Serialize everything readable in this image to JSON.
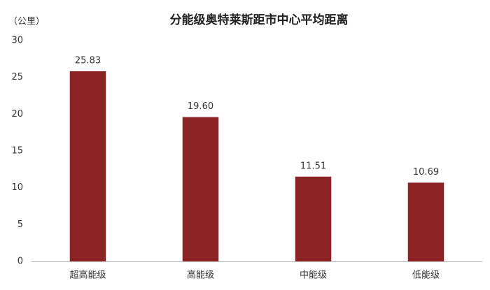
{
  "chart_data": {
    "type": "bar",
    "title": "分能级奥特莱斯距市中心平均距离",
    "y_label": "（公里）",
    "categories": [
      "超高能级",
      "高能级",
      "中能级",
      "低能级"
    ],
    "values": [
      25.83,
      19.6,
      11.51,
      10.69
    ],
    "value_labels": [
      "25.83",
      "19.60",
      "11.51",
      "10.69"
    ],
    "color": "#8b2325",
    "ylim": [
      0,
      30
    ],
    "yticks": [
      0,
      5,
      10,
      15,
      20,
      25,
      30
    ],
    "grid": false
  }
}
